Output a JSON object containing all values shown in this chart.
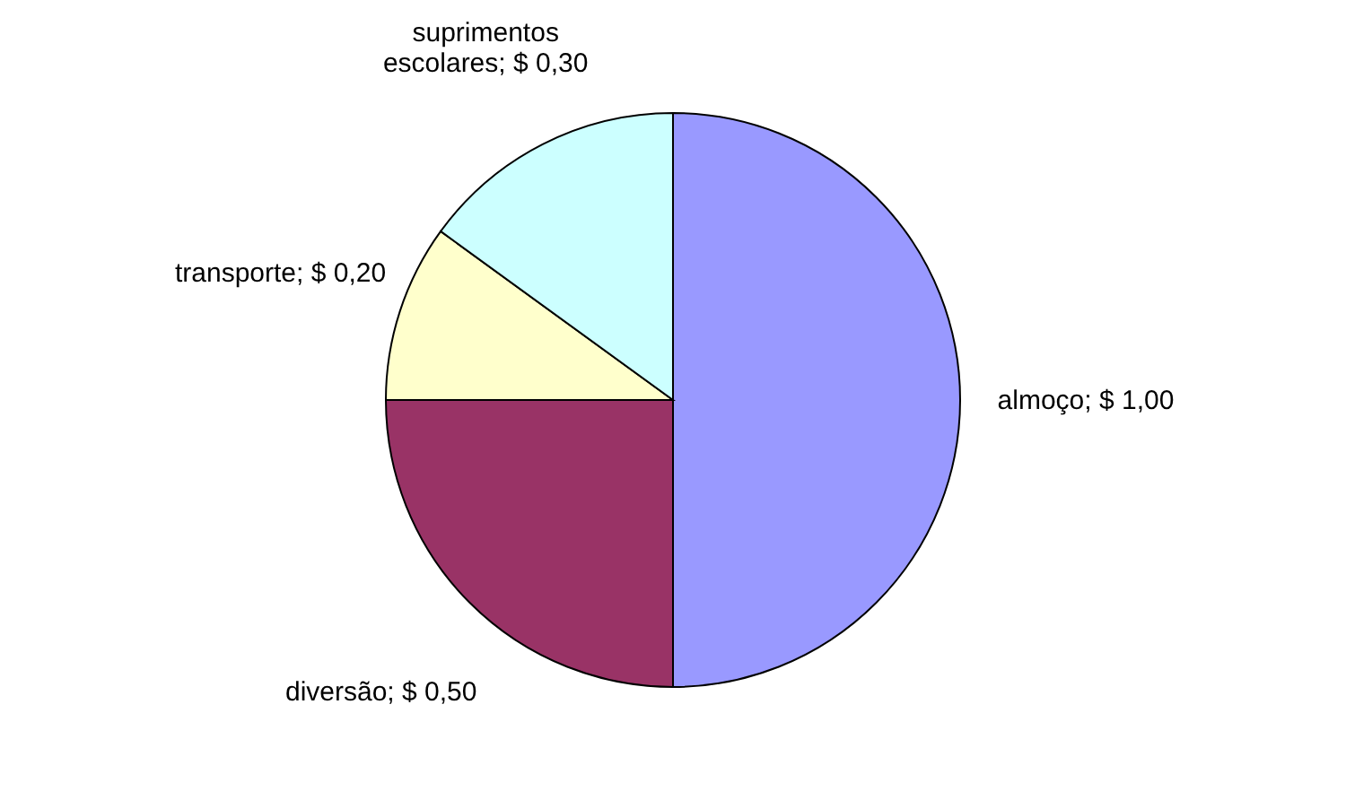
{
  "chart_data": {
    "type": "pie",
    "categories": [
      "almoço",
      "diversão",
      "transporte",
      "suprimentos escolares"
    ],
    "values": [
      1.0,
      0.5,
      0.2,
      0.3
    ],
    "value_labels": [
      "$ 1,00",
      "$ 0,50",
      "$ 0,20",
      "$ 0,30"
    ],
    "colors": [
      "#9999ff",
      "#993366",
      "#ffffcc",
      "#ccffff"
    ]
  }
}
